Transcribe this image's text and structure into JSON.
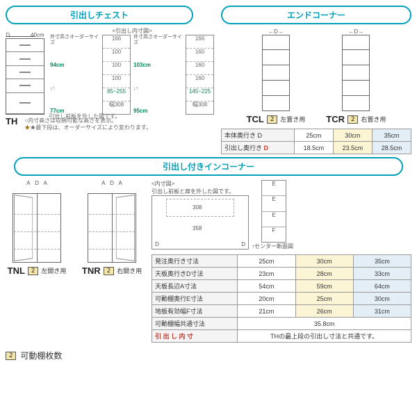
{
  "colors": {
    "accent": "#00a0b8",
    "dim_green": "#008a5a",
    "badge_bg": "#f5e6a8",
    "hl_yellow": "#fbf5d6",
    "hl_blue": "#e4eef7",
    "red": "#c0392b"
  },
  "shelf_legend": {
    "badge": "2",
    "label": "可動棚枚数"
  },
  "sec_chest": {
    "title": "引出しチェスト",
    "top_depth": "40cm",
    "inner_label": "<引出し内寸図>",
    "inner_note": "引出し前板を外した図です。",
    "front1": {
      "slots": [
        "166",
        "100",
        "100",
        "100",
        "85~255",
        "幅308"
      ],
      "ext": "外寸高さオーダーサイズ",
      "h_hi": "94cm",
      "h_lo": "77cm"
    },
    "front2": {
      "slots": [
        "166",
        "160",
        "160",
        "160",
        "145~225",
        "幅308"
      ],
      "ext": "外寸高さオーダーサイズ",
      "h_hi": "103cm",
      "h_lo": "95cm"
    },
    "model": "TH",
    "note1": "○内寸高さは収納可能な高さを表示。",
    "note2": "★最下段は、オーダーサイズにより変わります。"
  },
  "sec_endcorner": {
    "title": "エンドコーナー",
    "left": {
      "model": "TCL",
      "badge": "2",
      "usage": "左置き用"
    },
    "right": {
      "model": "TCR",
      "badge": "2",
      "usage": "右置き用"
    },
    "spec": {
      "rows": [
        {
          "label": "本体奥行き D",
          "v": [
            "25cm",
            "30cm",
            "35cm"
          ]
        },
        {
          "label": "引出し奥行き D",
          "red": true,
          "v": [
            "18.5cm",
            "23.5cm",
            "28.5cm"
          ]
        }
      ]
    }
  },
  "sec_incorner": {
    "title": "引出し付きインコーナー",
    "left": {
      "model": "TNL",
      "badge": "2",
      "usage": "左開き用"
    },
    "right": {
      "model": "TNR",
      "badge": "2",
      "usage": "右開き用"
    },
    "inner_label": "<内寸図>",
    "inner_note": "引出し前板と扉を外した図です。",
    "inner_dims": {
      "w_top": "308",
      "w_mid": "358"
    },
    "side_labels": [
      "E",
      "E",
      "E",
      "F"
    ],
    "side_caption": "↑センター断面図",
    "spec": {
      "rows": [
        {
          "label": "発注奥行き寸法",
          "v": [
            "25cm",
            "30cm",
            "35cm"
          ],
          "hl": [
            null,
            "y",
            "b"
          ]
        },
        {
          "label": "天板奥行きD寸法",
          "v": [
            "23cm",
            "28cm",
            "33cm"
          ],
          "hl": [
            null,
            "y",
            "b"
          ]
        },
        {
          "label": "天板長辺A寸法",
          "v": [
            "54cm",
            "59cm",
            "64cm"
          ],
          "hl": [
            null,
            "y",
            "b"
          ]
        },
        {
          "label": "可動棚奥行E寸法",
          "v": [
            "20cm",
            "25cm",
            "30cm"
          ],
          "hl": [
            null,
            "y",
            "b"
          ]
        },
        {
          "label": "地板有効幅F寸法",
          "v": [
            "21cm",
            "26cm",
            "31cm"
          ],
          "hl": [
            null,
            "y",
            "b"
          ]
        },
        {
          "label": "可動棚幅共通寸法",
          "colspan": 3,
          "v": [
            "35.8cm"
          ]
        },
        {
          "label": "引 出 し 内 寸",
          "d_red": true,
          "colspan": 3,
          "v": [
            "THの最上段の引出し寸法と共通です。"
          ]
        }
      ]
    }
  }
}
